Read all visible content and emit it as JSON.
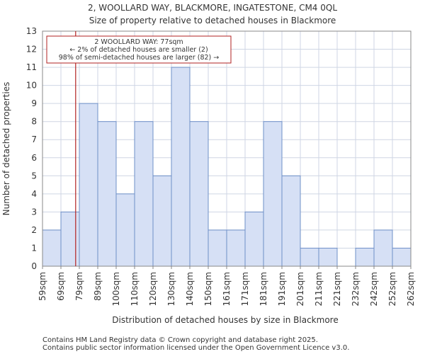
{
  "chart_data": {
    "type": "bar",
    "title": "2, WOOLLARD WAY, BLACKMORE, INGATESTONE, CM4 0QL",
    "subtitle": "Size of property relative to detached houses in Blackmore",
    "xlabel": "Distribution of detached houses by size in Blackmore",
    "ylabel": "Number of detached properties",
    "bin_edges": [
      59,
      69,
      79,
      89,
      100,
      110,
      120,
      130,
      140,
      150,
      161,
      171,
      181,
      191,
      201,
      211,
      221,
      232,
      242,
      252,
      262
    ],
    "bin_edge_labels": [
      "59sqm",
      "69sqm",
      "79sqm",
      "89sqm",
      "100sqm",
      "110sqm",
      "120sqm",
      "130sqm",
      "140sqm",
      "150sqm",
      "161sqm",
      "171sqm",
      "181sqm",
      "191sqm",
      "201sqm",
      "211sqm",
      "221sqm",
      "232sqm",
      "242sqm",
      "252sqm",
      "262sqm"
    ],
    "values": [
      2,
      3,
      9,
      8,
      4,
      8,
      5,
      11,
      8,
      2,
      2,
      3,
      8,
      5,
      1,
      1,
      0,
      1,
      2,
      1
    ],
    "ylim": [
      0,
      13
    ],
    "yticks": [
      "0",
      "1",
      "2",
      "3",
      "4",
      "5",
      "6",
      "7",
      "8",
      "9",
      "10",
      "11",
      "12",
      "13"
    ],
    "grid": true,
    "bar_color": "#d6e0f5",
    "bar_edge_color": "#6f90c8",
    "marker": {
      "value": 77,
      "color": "#b22222",
      "annotation_lines": [
        "2 WOOLLARD WAY: 77sqm",
        "← 2% of detached houses are smaller (2)",
        "98% of semi-detached houses are larger (82) →"
      ]
    }
  },
  "footer": {
    "line1": "Contains HM Land Registry data © Crown copyright and database right 2025.",
    "line2": "Contains public sector information licensed under the Open Government Licence v3.0."
  }
}
